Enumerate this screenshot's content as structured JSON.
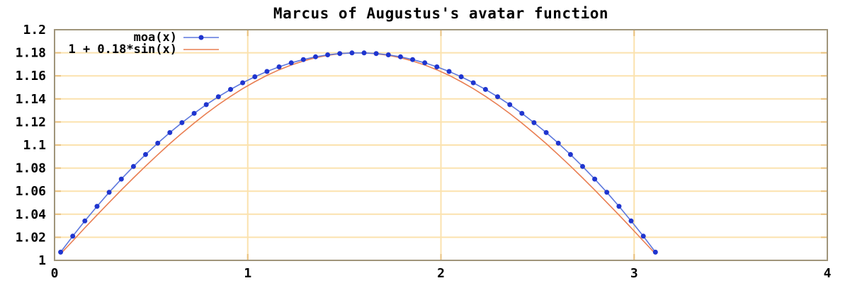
{
  "title": "Marcus of Augustus's avatar function",
  "colors": {
    "background": "#ffffff",
    "border": "#a0957b",
    "grid": "#fbe2ae",
    "tick": "#e9c17e",
    "text": "#000000",
    "series1_line": "#5c77dd",
    "series1_point": "#1f35cf",
    "series2_line": "#e97e52"
  },
  "chart_data": {
    "type": "line",
    "title": "Marcus of Augustus's avatar function",
    "xlabel": "",
    "ylabel": "",
    "xlim": [
      0,
      4
    ],
    "ylim": [
      1,
      1.2
    ],
    "x_ticks": [
      0,
      1,
      2,
      3,
      4
    ],
    "y_ticks": [
      1,
      1.02,
      1.04,
      1.06,
      1.08,
      1.1,
      1.12,
      1.14,
      1.16,
      1.18,
      1.2
    ],
    "grid": true,
    "legend_position": "top-left",
    "series": [
      {
        "name": "moa(x)",
        "style": "linespoints",
        "x": [
          0.0314,
          0.0942,
          0.1571,
          0.2199,
          0.2827,
          0.3456,
          0.4084,
          0.4712,
          0.5341,
          0.5969,
          0.6597,
          0.7226,
          0.7854,
          0.8482,
          0.9111,
          0.9739,
          1.0367,
          1.0996,
          1.1624,
          1.2252,
          1.2881,
          1.3509,
          1.4137,
          1.4765,
          1.5394,
          1.6022,
          1.665,
          1.7279,
          1.7907,
          1.8535,
          1.9164,
          1.9792,
          2.042,
          2.1049,
          2.1677,
          2.2305,
          2.2934,
          2.3562,
          2.419,
          2.4819,
          2.5447,
          2.6075,
          2.6704,
          2.7332,
          2.796,
          2.8588,
          2.9217,
          2.9845,
          3.0473,
          3.1102
        ],
        "y": [
          1.0071,
          1.021,
          1.0342,
          1.0469,
          1.059,
          1.0705,
          1.0814,
          1.0918,
          1.1016,
          1.1108,
          1.1194,
          1.1275,
          1.135,
          1.1419,
          1.1482,
          1.154,
          1.1592,
          1.1638,
          1.1678,
          1.1713,
          1.1741,
          1.1765,
          1.1782,
          1.1793,
          1.1799,
          1.1799,
          1.1793,
          1.1782,
          1.1765,
          1.1741,
          1.1713,
          1.1678,
          1.1638,
          1.1592,
          1.154,
          1.1482,
          1.1419,
          1.135,
          1.1275,
          1.1194,
          1.1108,
          1.1016,
          1.0918,
          1.0814,
          1.0705,
          1.059,
          1.0469,
          1.0342,
          1.021,
          1.0071
        ]
      },
      {
        "name": "1 + 0.18*sin(x)",
        "style": "lines",
        "x": [
          0.0314,
          0.0942,
          0.1571,
          0.2199,
          0.2827,
          0.3456,
          0.4084,
          0.4712,
          0.5341,
          0.5969,
          0.6597,
          0.7226,
          0.7854,
          0.8482,
          0.9111,
          0.9739,
          1.0367,
          1.0996,
          1.1624,
          1.2252,
          1.2881,
          1.3509,
          1.4137,
          1.4765,
          1.5394,
          1.6022,
          1.665,
          1.7279,
          1.7907,
          1.8535,
          1.9164,
          1.9792,
          2.042,
          2.1049,
          2.1677,
          2.2305,
          2.2934,
          2.3562,
          2.419,
          2.4819,
          2.5447,
          2.6075,
          2.6704,
          2.7332,
          2.796,
          2.8588,
          2.9217,
          2.9845,
          3.0473,
          3.1102
        ],
        "y": [
          1.0057,
          1.0169,
          1.0282,
          1.0393,
          1.0502,
          1.061,
          1.0715,
          1.0817,
          1.0916,
          1.1012,
          1.1103,
          1.119,
          1.1273,
          1.135,
          1.1422,
          1.1489,
          1.1549,
          1.1604,
          1.1652,
          1.1694,
          1.1729,
          1.1757,
          1.1778,
          1.1792,
          1.1799,
          1.1799,
          1.1792,
          1.1778,
          1.1757,
          1.1729,
          1.1694,
          1.1652,
          1.1604,
          1.1549,
          1.1489,
          1.1422,
          1.135,
          1.1273,
          1.119,
          1.1103,
          1.1012,
          1.0916,
          1.0817,
          1.0715,
          1.061,
          1.0502,
          1.0393,
          1.0282,
          1.0169,
          1.0057
        ]
      }
    ]
  }
}
